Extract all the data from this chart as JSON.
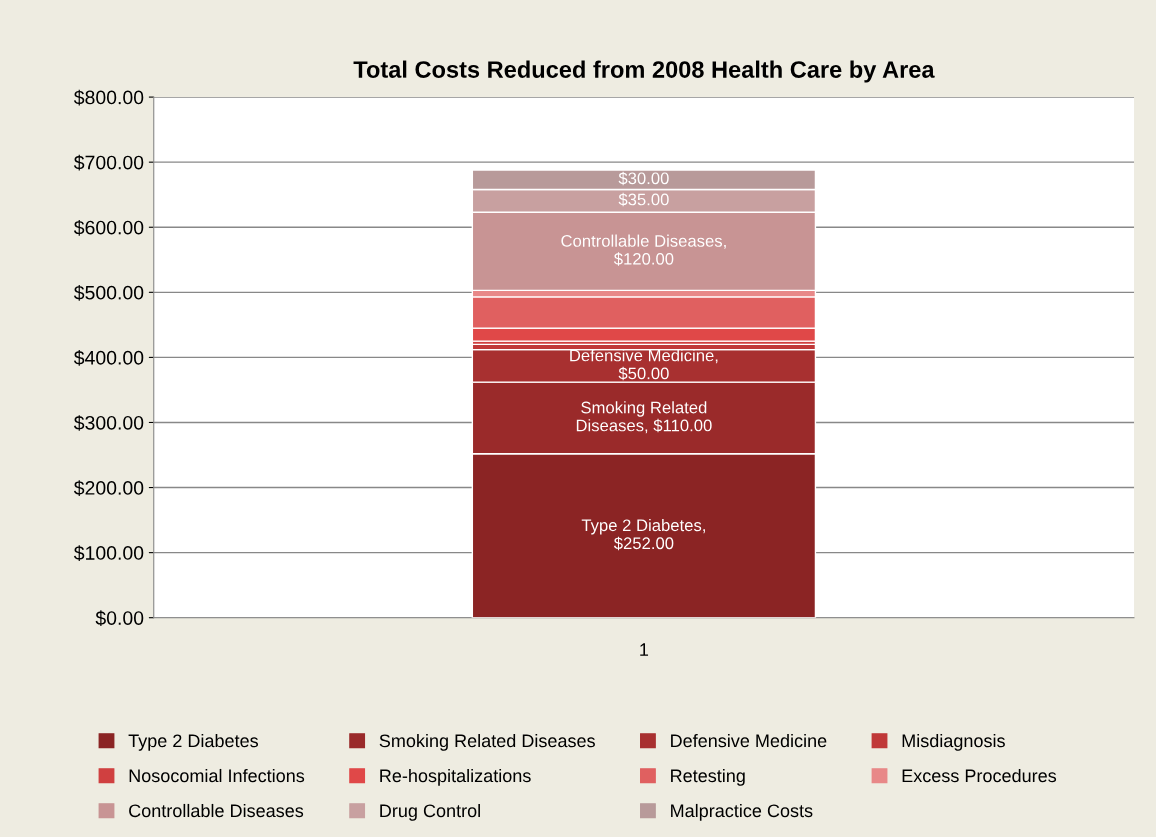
{
  "chart_data": {
    "type": "bar",
    "stacked": true,
    "title": "Total Costs Reduced from 2008 Health Care by Area",
    "categories": [
      "1"
    ],
    "series": [
      {
        "name": "Type 2 Diabetes",
        "color": "#8b2424",
        "values": [
          252
        ],
        "value_labels": [
          "Type 2 Diabetes,\n$252.00"
        ]
      },
      {
        "name": "Smoking Related Diseases",
        "color": "#9a2a2a",
        "values": [
          110
        ],
        "value_labels": [
          "Smoking Related\nDiseases, $110.00"
        ]
      },
      {
        "name": "Defensive Medicine",
        "color": "#a83030",
        "values": [
          50
        ],
        "value_labels": [
          "Defensive Medicine,\n$50.00"
        ]
      },
      {
        "name": "Misdiagnosis",
        "color": "#c03838",
        "values": [
          8
        ],
        "value_labels": [
          null
        ]
      },
      {
        "name": "Nosocomial Infections",
        "color": "#d04040",
        "values": [
          5
        ],
        "value_labels": [
          null
        ]
      },
      {
        "name": "Re-hospitalizations",
        "color": "#e04848",
        "values": [
          20
        ],
        "value_labels": [
          null
        ]
      },
      {
        "name": "Retesting",
        "color": "#e06060",
        "values": [
          48
        ],
        "value_labels": [
          null
        ]
      },
      {
        "name": "Excess Procedures",
        "color": "#e88888",
        "values": [
          10
        ],
        "value_labels": [
          null
        ]
      },
      {
        "name": "Controllable Diseases",
        "color": "#c89494",
        "values": [
          120
        ],
        "value_labels": [
          "Controllable Diseases,\n$120.00"
        ]
      },
      {
        "name": "Drug Control",
        "color": "#c8a0a0",
        "values": [
          35
        ],
        "value_labels": [
          "$35.00"
        ]
      },
      {
        "name": "Malpractice Costs",
        "color": "#b89a9a",
        "values": [
          30
        ],
        "value_labels": [
          "$30.00"
        ]
      }
    ],
    "ylim": [
      0,
      800
    ],
    "yticks": [
      {
        "value": 0,
        "label": "$0.00"
      },
      {
        "value": 100,
        "label": "$100.00"
      },
      {
        "value": 200,
        "label": "$200.00"
      },
      {
        "value": 300,
        "label": "$300.00"
      },
      {
        "value": 400,
        "label": "$400.00"
      },
      {
        "value": 500,
        "label": "$500.00"
      },
      {
        "value": 600,
        "label": "$600.00"
      },
      {
        "value": 700,
        "label": "$700.00"
      },
      {
        "value": 800,
        "label": "$800.00"
      }
    ],
    "grid": "y",
    "legend": "bottom"
  }
}
